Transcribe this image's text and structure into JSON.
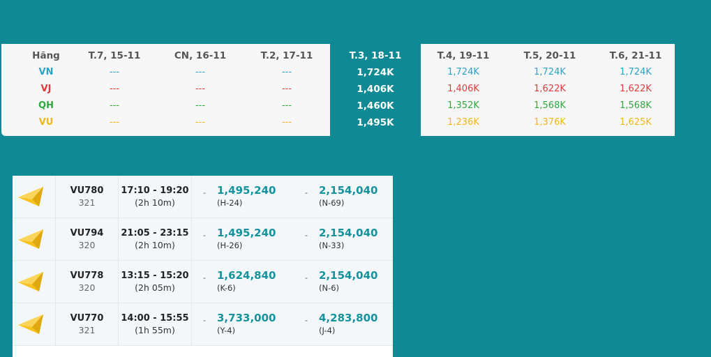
{
  "matrix": {
    "airline_header": "Hãng",
    "dates": [
      "T.7, 15-11",
      "CN, 16-11",
      "T.2, 17-11",
      "T.3, 18-11",
      "T.4, 19-11",
      "T.5, 20-11",
      "T.6, 21-11"
    ],
    "selected_date_index": 3,
    "airlines": [
      {
        "code": "VN",
        "color": "#2aa3c9",
        "prices": [
          "---",
          "---",
          "---",
          "1,724K",
          "1,724K",
          "1,724K",
          "1,724K"
        ]
      },
      {
        "code": "VJ",
        "color": "#e03a3a",
        "prices": [
          "---",
          "---",
          "---",
          "1,406K",
          "1,406K",
          "1,622K",
          "1,622K"
        ]
      },
      {
        "code": "QH",
        "color": "#2eaa3d",
        "prices": [
          "---",
          "---",
          "---",
          "1,460K",
          "1,352K",
          "1,568K",
          "1,568K"
        ]
      },
      {
        "code": "VU",
        "color": "#f2b51b",
        "prices": [
          "---",
          "---",
          "---",
          "1,495K",
          "1,236K",
          "1,376K",
          "1,625K"
        ]
      }
    ]
  },
  "flights": [
    {
      "number": "VU780",
      "aircraft": "321",
      "time": "17:10 - 19:20",
      "duration": "(2h 10m)",
      "fares": [
        {
          "price": "1,495,240",
          "class": "(H-24)",
          "dash": "-"
        },
        {
          "price": "2,154,040",
          "class": "(N-69)",
          "dash": "-"
        }
      ]
    },
    {
      "number": "VU794",
      "aircraft": "320",
      "time": "21:05 - 23:15",
      "duration": "(2h 10m)",
      "fares": [
        {
          "price": "1,495,240",
          "class": "(H-26)",
          "dash": "-"
        },
        {
          "price": "2,154,040",
          "class": "(N-33)",
          "dash": "-"
        }
      ]
    },
    {
      "number": "VU778",
      "aircraft": "320",
      "time": "13:15 - 15:20",
      "duration": "(2h 05m)",
      "fares": [
        {
          "price": "1,624,840",
          "class": "(K-6)",
          "dash": "-"
        },
        {
          "price": "2,154,040",
          "class": "(N-6)",
          "dash": "-"
        }
      ]
    },
    {
      "number": "VU770",
      "aircraft": "321",
      "time": "14:00 - 15:55",
      "duration": "(1h 55m)",
      "fares": [
        {
          "price": "3,733,000",
          "class": "(Y-4)",
          "dash": "-"
        },
        {
          "price": "4,283,800",
          "class": "(J-4)",
          "dash": "-"
        }
      ]
    }
  ],
  "colors": {
    "background": "#0f8a94",
    "price": "#14939d",
    "logo_yellow": "#f7c21b"
  },
  "icons": {
    "airline_logo": "vietravel-airlines-logo-icon"
  }
}
